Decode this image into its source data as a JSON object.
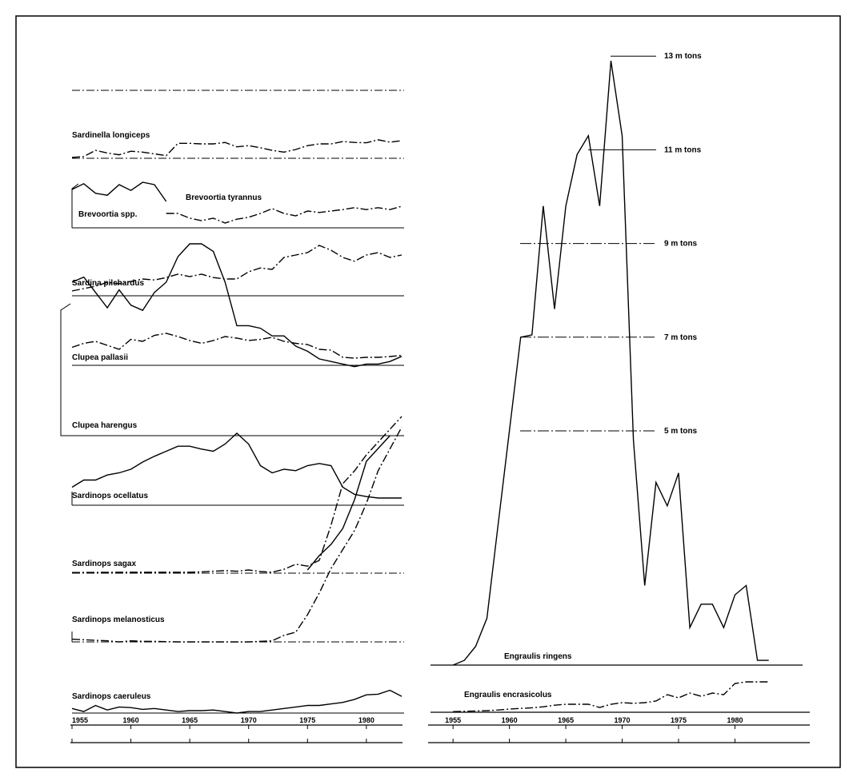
{
  "colors": {
    "ink": "#000000",
    "background": "#ffffff"
  },
  "chart_data": [
    {
      "type": "line",
      "title": "",
      "xlabel": "",
      "ylabel": "",
      "xlim": [
        1955,
        1983
      ],
      "x_ticks": [
        "1955",
        "1960",
        "1965",
        "1970",
        "1975",
        "1980"
      ],
      "grid": false,
      "panels": [
        {
          "label": "",
          "baseline_only": true,
          "series": []
        },
        {
          "label": "Sardinella longiceps",
          "series": [
            {
              "style": "dashdot",
              "x": [
                1955,
                1956,
                1957,
                1958,
                1959,
                1960,
                1961,
                1962,
                1963,
                1964,
                1965,
                1966,
                1967,
                1968,
                1969,
                1970,
                1971,
                1972,
                1973,
                1974,
                1975,
                1976,
                1977,
                1978,
                1979,
                1980,
                1981,
                1982,
                1983
              ],
              "values": [
                0.05,
                0.1,
                0.45,
                0.3,
                0.2,
                0.4,
                0.35,
                0.25,
                0.15,
                0.85,
                0.85,
                0.82,
                0.82,
                0.9,
                0.65,
                0.72,
                0.6,
                0.45,
                0.35,
                0.5,
                0.72,
                0.82,
                0.82,
                0.95,
                0.9,
                0.88,
                1.05,
                0.92,
                1.0
              ]
            }
          ]
        },
        {
          "label": "Brevoortia spp.",
          "series": [
            {
              "style": "solid",
              "x": [
                1955,
                1956,
                1957,
                1958,
                1959,
                1960,
                1961,
                1962,
                1963
              ],
              "values": [
                0.8,
                0.92,
                0.72,
                0.68,
                0.9,
                0.78,
                0.95,
                0.9,
                0.55
              ]
            }
          ]
        },
        {
          "label": "Brevoortia tyrannus",
          "series": [
            {
              "style": "dashdot",
              "x": [
                1963,
                1964,
                1965,
                1966,
                1967,
                1968,
                1969,
                1970,
                1971,
                1972,
                1973,
                1974,
                1975,
                1976,
                1977,
                1978,
                1979,
                1980,
                1981,
                1982,
                1983
              ],
              "values": [
                0.3,
                0.3,
                0.2,
                0.15,
                0.2,
                0.1,
                0.18,
                0.22,
                0.3,
                0.4,
                0.3,
                0.25,
                0.35,
                0.32,
                0.35,
                0.38,
                0.42,
                0.38,
                0.42,
                0.38,
                0.45
              ]
            }
          ]
        },
        {
          "label": "Sardina pilchardus",
          "series": [
            {
              "style": "dashdot",
              "x": [
                1955,
                1956,
                1957,
                1958,
                1959,
                1960,
                1961,
                1962,
                1963,
                1964,
                1965,
                1966,
                1967,
                1968,
                1969,
                1970,
                1971,
                1972,
                1973,
                1974,
                1975,
                1976,
                1977,
                1978,
                1979,
                1980,
                1981,
                1982,
                1983
              ],
              "values": [
                0.1,
                0.15,
                0.2,
                0.28,
                0.25,
                0.3,
                0.35,
                0.33,
                0.38,
                0.45,
                0.4,
                0.45,
                0.38,
                0.35,
                0.35,
                0.5,
                0.58,
                0.55,
                0.8,
                0.85,
                0.9,
                1.05,
                0.95,
                0.8,
                0.72,
                0.85,
                0.9,
                0.8,
                0.85
              ]
            }
          ]
        },
        {
          "label": "Clupea pallasii",
          "series": [
            {
              "style": "dashdot",
              "x": [
                1955,
                1956,
                1957,
                1958,
                1959,
                1960,
                1961,
                1962,
                1963,
                1964,
                1965,
                1966,
                1967,
                1968,
                1969,
                1970,
                1971,
                1972,
                1973,
                1974,
                1975,
                1976,
                1977,
                1978,
                1979,
                1980,
                1981,
                1982,
                1983
              ],
              "values": [
                0.45,
                0.55,
                0.6,
                0.5,
                0.4,
                0.65,
                0.6,
                0.75,
                0.8,
                0.72,
                0.62,
                0.55,
                0.62,
                0.72,
                0.68,
                0.62,
                0.65,
                0.7,
                0.6,
                0.55,
                0.52,
                0.4,
                0.38,
                0.2,
                0.18,
                0.2,
                0.2,
                0.22,
                0.25
              ]
            }
          ]
        },
        {
          "label": "Clupea harengus",
          "series": [
            {
              "style": "solid",
              "x": [
                1955,
                1956,
                1957,
                1958,
                1959,
                1960,
                1961,
                1962,
                1963,
                1964,
                1965,
                1966,
                1967,
                1968,
                1969,
                1970,
                1971,
                1972,
                1973,
                1974,
                1975,
                1976,
                1977,
                1978,
                1979,
                1980,
                1981,
                1982,
                1983
              ],
              "values": [
                0.6,
                0.62,
                0.56,
                0.5,
                0.57,
                0.51,
                0.49,
                0.56,
                0.6,
                0.7,
                0.75,
                0.75,
                0.72,
                0.6,
                0.43,
                0.43,
                0.42,
                0.39,
                0.39,
                0.35,
                0.33,
                0.3,
                0.29,
                0.28,
                0.27,
                0.28,
                0.28,
                0.29,
                0.31
              ]
            }
          ]
        },
        {
          "label": "Sardinops ocellatus",
          "series": [
            {
              "style": "solid",
              "x": [
                1955,
                1956,
                1957,
                1958,
                1959,
                1960,
                1961,
                1962,
                1963,
                1964,
                1965,
                1966,
                1967,
                1968,
                1969,
                1970,
                1971,
                1972,
                1973,
                1974,
                1975,
                1976,
                1977,
                1978,
                1979,
                1980,
                1981,
                1982,
                1983
              ],
              "values": [
                0.25,
                0.35,
                0.35,
                0.42,
                0.45,
                0.5,
                0.6,
                0.68,
                0.75,
                0.82,
                0.82,
                0.78,
                0.75,
                0.85,
                1.0,
                0.85,
                0.55,
                0.45,
                0.5,
                0.48,
                0.55,
                0.58,
                0.55,
                0.25,
                0.15,
                0.12,
                0.1,
                0.1,
                0.1
              ]
            }
          ]
        },
        {
          "label": "Sardinops sagax",
          "series": [
            {
              "style": "dashdot",
              "x": [
                1955,
                1960,
                1965,
                1966,
                1967,
                1968,
                1969,
                1970,
                1971,
                1972,
                1973,
                1974,
                1975,
                1976,
                1977,
                1978,
                1979,
                1980,
                1981,
                1982,
                1983
              ],
              "values": [
                0.02,
                0.03,
                0.03,
                0.04,
                0.06,
                0.08,
                0.06,
                0.1,
                0.05,
                0.03,
                0.12,
                0.28,
                0.22,
                0.4,
                1.5,
                2.8,
                3.2,
                3.7,
                4.1,
                4.5,
                4.9
              ]
            },
            {
              "style": "solid",
              "x": [
                1975,
                1976,
                1977,
                1978,
                1979,
                1980,
                1981,
                1982
              ],
              "values": [
                0.1,
                0.55,
                0.9,
                1.4,
                2.3,
                3.5,
                3.9,
                4.3
              ]
            }
          ]
        },
        {
          "label": "Sardinops melanosticus",
          "series": [
            {
              "style": "dashdot",
              "x": [
                1955,
                1956,
                1957,
                1958,
                1959,
                1960,
                1961,
                1962,
                1963,
                1964,
                1965,
                1966,
                1967,
                1968,
                1969,
                1970,
                1971,
                1972,
                1973,
                1974,
                1975,
                1976,
                1977,
                1978,
                1979,
                1980,
                1981,
                1982,
                1983
              ],
              "values": [
                0.05,
                0.04,
                0.03,
                0.02,
                0.0,
                0.02,
                0.01,
                0.01,
                0.005,
                0.0,
                0.0,
                0.0,
                0.0,
                0.0,
                0.0,
                0.0,
                0.01,
                0.02,
                0.12,
                0.18,
                0.5,
                0.9,
                1.35,
                1.7,
                2.05,
                2.55,
                3.15,
                3.55,
                3.95
              ]
            }
          ]
        },
        {
          "label": "Sardinops caeruleus",
          "series": [
            {
              "style": "solid",
              "x": [
                1955,
                1956,
                1957,
                1958,
                1959,
                1960,
                1961,
                1962,
                1963,
                1964,
                1965,
                1966,
                1967,
                1968,
                1969,
                1970,
                1971,
                1972,
                1973,
                1974,
                1975,
                1976,
                1977,
                1978,
                1979,
                1980,
                1981,
                1982,
                1983
              ],
              "values": [
                0.15,
                0.05,
                0.25,
                0.1,
                0.2,
                0.18,
                0.12,
                0.15,
                0.1,
                0.05,
                0.08,
                0.08,
                0.1,
                0.05,
                0.0,
                0.05,
                0.05,
                0.1,
                0.15,
                0.2,
                0.25,
                0.25,
                0.3,
                0.35,
                0.45,
                0.6,
                0.62,
                0.75,
                0.55
              ]
            }
          ]
        }
      ]
    },
    {
      "type": "line",
      "title": "",
      "xlabel": "",
      "ylabel": "",
      "xlim": [
        1953,
        1986
      ],
      "x_ticks": [
        "1955",
        "1960",
        "1965",
        "1970",
        "1975",
        "1980"
      ],
      "grid": false,
      "y_reference_lines": [
        {
          "value": 5,
          "label": "5 m tons"
        },
        {
          "value": 7,
          "label": "7 m tons"
        },
        {
          "value": 9,
          "label": "9 m tons"
        },
        {
          "value": 11,
          "label": "11 m tons"
        },
        {
          "value": 13,
          "label": "13 m tons"
        }
      ],
      "series": [
        {
          "name": "Engraulis ringens",
          "style": "solid",
          "x": [
            1955,
            1956,
            1957,
            1958,
            1959,
            1960,
            1961,
            1962,
            1963,
            1964,
            1965,
            1966,
            1967,
            1968,
            1969,
            1970,
            1971,
            1972,
            1973,
            1974,
            1975,
            1976,
            1977,
            1978,
            1979,
            1980,
            1981,
            1982,
            1983
          ],
          "values": [
            0.0,
            0.1,
            0.4,
            1.0,
            3.0,
            5.0,
            7.0,
            7.05,
            9.8,
            7.6,
            9.8,
            10.9,
            11.3,
            9.8,
            12.9,
            11.3,
            4.8,
            1.7,
            3.9,
            3.4,
            4.1,
            0.8,
            1.3,
            1.3,
            0.8,
            1.5,
            1.7,
            0.1,
            0.1
          ]
        },
        {
          "name": "Engraulis encrasicolus",
          "style": "dashdot",
          "x": [
            1955,
            1956,
            1957,
            1958,
            1959,
            1960,
            1961,
            1962,
            1963,
            1964,
            1965,
            1966,
            1967,
            1968,
            1969,
            1970,
            1971,
            1972,
            1973,
            1974,
            1975,
            1976,
            1977,
            1978,
            1979,
            1980,
            1981,
            1982,
            1983
          ],
          "values": [
            0.02,
            0.03,
            0.04,
            0.05,
            0.07,
            0.1,
            0.12,
            0.14,
            0.17,
            0.22,
            0.25,
            0.25,
            0.25,
            0.15,
            0.25,
            0.3,
            0.28,
            0.3,
            0.35,
            0.55,
            0.45,
            0.6,
            0.5,
            0.6,
            0.55,
            0.9,
            0.95,
            0.95,
            0.95
          ]
        }
      ]
    }
  ]
}
